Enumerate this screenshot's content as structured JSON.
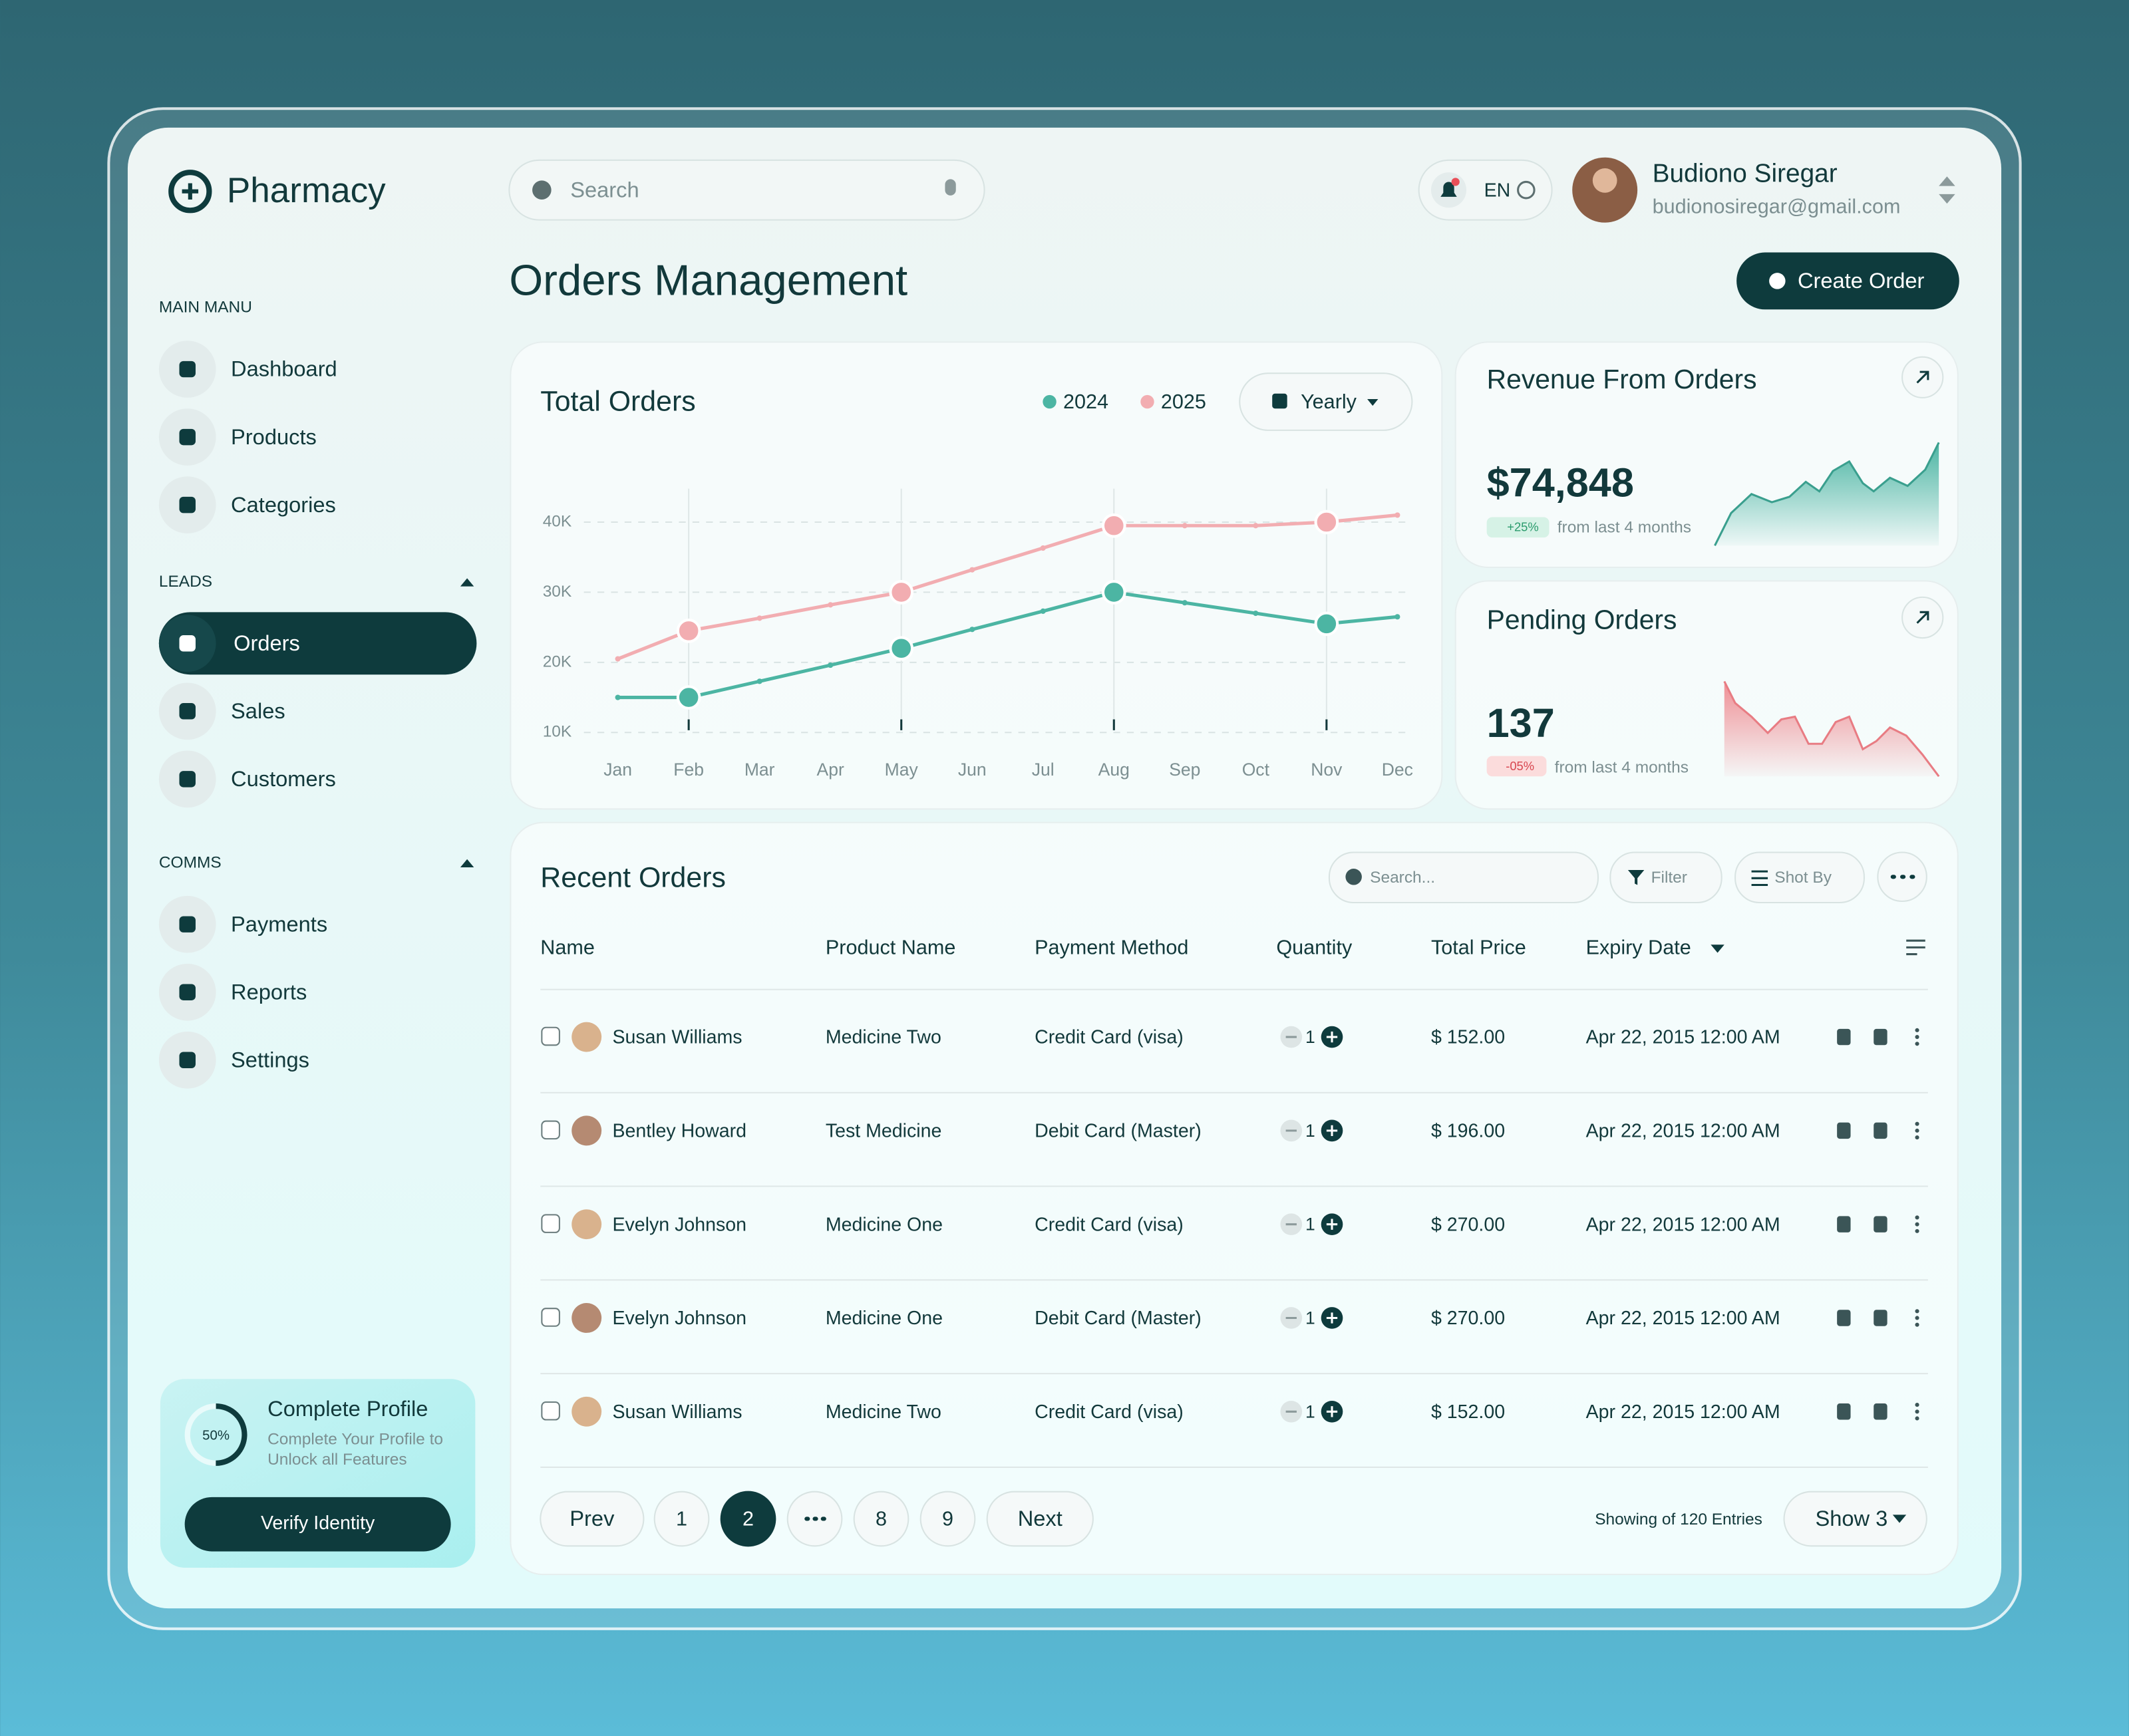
{
  "brand": "Pharmacy",
  "header": {
    "search_placeholder": "Search",
    "language": "EN",
    "user_name": "Budiono Siregar",
    "user_email": "budionosiregar@gmail.com"
  },
  "page_title": "Orders Management",
  "create_button": "Create Order",
  "sidebar": {
    "sections": [
      {
        "title": "MAIN MANU",
        "items": [
          {
            "label": "Dashboard"
          },
          {
            "label": "Products"
          },
          {
            "label": "Categories"
          }
        ]
      },
      {
        "title": "LEADS",
        "items": [
          {
            "label": "Orders",
            "active": true
          },
          {
            "label": "Sales"
          },
          {
            "label": "Customers"
          }
        ]
      },
      {
        "title": "COMMS",
        "items": [
          {
            "label": "Payments"
          },
          {
            "label": "Reports"
          },
          {
            "label": "Settings"
          }
        ]
      }
    ]
  },
  "profile_card": {
    "title": "Complete Profile",
    "progress": 50,
    "progress_label": "50%",
    "text_lines": [
      "Complete Your Profile to",
      "Unlock all Features"
    ],
    "button": "Verify Identity"
  },
  "chart_data": {
    "type": "line",
    "title": "Total Orders",
    "period": "Yearly",
    "categories": [
      "Jan",
      "Feb",
      "Mar",
      "Apr",
      "May",
      "Jun",
      "Jul",
      "Aug",
      "Sep",
      "Oct",
      "Nov",
      "Dec"
    ],
    "series": [
      {
        "name": "2024",
        "color": "#4cb5a3",
        "values": [
          15000,
          15000,
          17300,
          19600,
          22000,
          24700,
          27300,
          30000,
          28500,
          27000,
          25500,
          26500
        ]
      },
      {
        "name": "2025",
        "color": "#f2adb1",
        "values": [
          20500,
          24500,
          26300,
          28200,
          30000,
          33200,
          36300,
          39500,
          39500,
          39500,
          40000,
          41000
        ]
      }
    ],
    "marker_indices": [
      1,
      4,
      7,
      10
    ],
    "ylim": [
      8000,
      44000
    ],
    "yticks": [
      {
        "value": 10000,
        "label": "10K"
      },
      {
        "value": 20000,
        "label": "20K"
      },
      {
        "value": 30000,
        "label": "30K"
      },
      {
        "value": 40000,
        "label": "40K"
      }
    ],
    "grid": true
  },
  "revenue_card": {
    "title": "Revenue From Orders",
    "value": "$74,848",
    "change": "+25%",
    "note": "from last 4 months"
  },
  "pending_card": {
    "title": "Pending Orders",
    "value": "137",
    "change": "-05%",
    "note": "from last 4 months"
  },
  "table": {
    "title": "Recent Orders",
    "search_placeholder": "Search...",
    "filter": "Filter",
    "sort": "Shot By",
    "columns": [
      "Name",
      "Product Name",
      "Payment Method",
      "Quantity",
      "Total Price",
      "Expiry Date"
    ],
    "rows": [
      [
        "Susan Williams",
        "Medicine Two",
        "Credit Card (visa)",
        "1",
        "$ 152.00",
        "Apr 22, 2015 12:00 AM"
      ],
      [
        "Bentley Howard",
        "Test Medicine",
        "Debit Card (Master)",
        "1",
        "$ 196.00",
        "Apr 22, 2015 12:00 AM"
      ],
      [
        "Evelyn Johnson",
        "Medicine One",
        "Credit Card (visa)",
        "1",
        "$ 270.00",
        "Apr 22, 2015 12:00 AM"
      ],
      [
        "Evelyn Johnson",
        "Medicine One",
        "Debit Card (Master)",
        "1",
        "$ 270.00",
        "Apr 22, 2015 12:00 AM"
      ],
      [
        "Susan Williams",
        "Medicine Two",
        "Credit Card (visa)",
        "1",
        "$ 152.00",
        "Apr 22, 2015 12:00 AM"
      ]
    ]
  },
  "pagination": {
    "prev": "Prev",
    "pages": [
      "1",
      "2",
      "8",
      "9"
    ],
    "current_index": 1,
    "next": "Next",
    "entries": "Showing of 120 Entries",
    "show": "Show 3"
  }
}
